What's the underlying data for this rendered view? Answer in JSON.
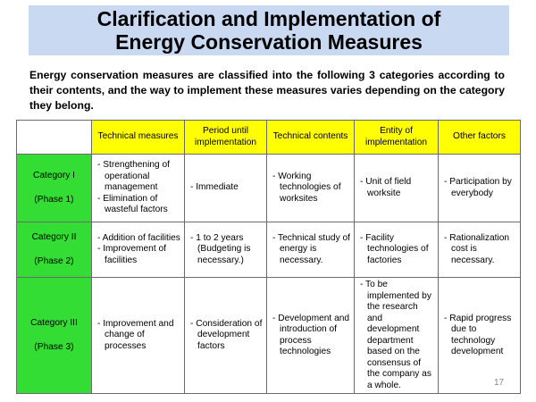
{
  "slide": {
    "title_lines": [
      "Clarification and Implementation of",
      "Energy Conservation Measures"
    ],
    "intro": "Energy conservation measures are classified into the following 3 categories according to their contents, and the way to implement these measures varies depending on the category they belong.",
    "page_number": "17"
  },
  "table": {
    "headers": [
      "Technical measures",
      "Period until implementation",
      "Technical contents",
      "Entity of implementation",
      "Other factors"
    ],
    "rows": [
      {
        "category": "Category I",
        "phase": "(Phase 1)",
        "technical_measures": [
          "- Strengthening of operational management",
          "- Elimination of wasteful factors"
        ],
        "period": [
          "- Immediate"
        ],
        "technical_contents": [
          "- Working technologies of worksites"
        ],
        "entity": [
          "- Unit of field worksite"
        ],
        "other": [
          "- Participation by everybody"
        ]
      },
      {
        "category": "Category II",
        "phase": "(Phase 2)",
        "technical_measures": [
          "- Addition of facilities",
          "- Improvement of facilities"
        ],
        "period": [
          "- 1 to 2 years (Budgeting is necessary.)"
        ],
        "technical_contents": [
          "- Technical study of energy is necessary."
        ],
        "entity": [
          "- Facility technologies of factories"
        ],
        "other": [
          "- Rationalization cost is necessary."
        ]
      },
      {
        "category": "Category III",
        "phase": "(Phase 3)",
        "technical_measures": [
          "- Improvement and change of processes"
        ],
        "period": [
          "- Consideration of development factors"
        ],
        "technical_contents": [
          "- Development and introduction of process technologies"
        ],
        "entity": [
          "- To be implemented by the research and development department based on the consensus of the company as a whole."
        ],
        "other": [
          "- Rapid progress due to technology development"
        ]
      }
    ]
  }
}
